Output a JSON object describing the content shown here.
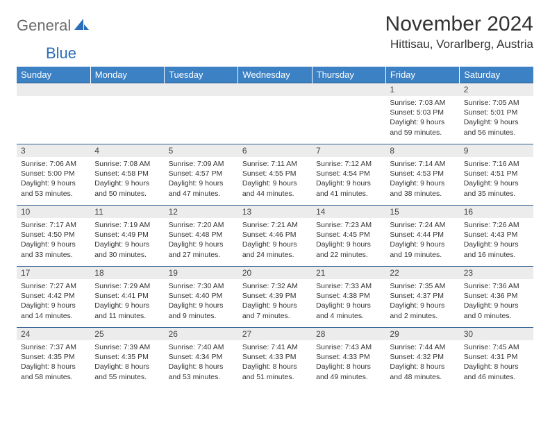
{
  "logo": {
    "general": "General",
    "blue": "Blue"
  },
  "header": {
    "month_title": "November 2024",
    "location": "Hittisau, Vorarlberg, Austria"
  },
  "colors": {
    "header_bg": "#3c81c4",
    "header_text": "#ffffff",
    "daynum_bg": "#ececec",
    "border": "#2c5a8c",
    "logo_gray": "#6b6b6b",
    "logo_blue": "#2a6db8"
  },
  "weekdays": [
    "Sunday",
    "Monday",
    "Tuesday",
    "Wednesday",
    "Thursday",
    "Friday",
    "Saturday"
  ],
  "weeks": [
    [
      null,
      null,
      null,
      null,
      null,
      {
        "d": "1",
        "sr": "7:03 AM",
        "ss": "5:03 PM",
        "dl": "9 hours and 59 minutes."
      },
      {
        "d": "2",
        "sr": "7:05 AM",
        "ss": "5:01 PM",
        "dl": "9 hours and 56 minutes."
      }
    ],
    [
      {
        "d": "3",
        "sr": "7:06 AM",
        "ss": "5:00 PM",
        "dl": "9 hours and 53 minutes."
      },
      {
        "d": "4",
        "sr": "7:08 AM",
        "ss": "4:58 PM",
        "dl": "9 hours and 50 minutes."
      },
      {
        "d": "5",
        "sr": "7:09 AM",
        "ss": "4:57 PM",
        "dl": "9 hours and 47 minutes."
      },
      {
        "d": "6",
        "sr": "7:11 AM",
        "ss": "4:55 PM",
        "dl": "9 hours and 44 minutes."
      },
      {
        "d": "7",
        "sr": "7:12 AM",
        "ss": "4:54 PM",
        "dl": "9 hours and 41 minutes."
      },
      {
        "d": "8",
        "sr": "7:14 AM",
        "ss": "4:53 PM",
        "dl": "9 hours and 38 minutes."
      },
      {
        "d": "9",
        "sr": "7:16 AM",
        "ss": "4:51 PM",
        "dl": "9 hours and 35 minutes."
      }
    ],
    [
      {
        "d": "10",
        "sr": "7:17 AM",
        "ss": "4:50 PM",
        "dl": "9 hours and 33 minutes."
      },
      {
        "d": "11",
        "sr": "7:19 AM",
        "ss": "4:49 PM",
        "dl": "9 hours and 30 minutes."
      },
      {
        "d": "12",
        "sr": "7:20 AM",
        "ss": "4:48 PM",
        "dl": "9 hours and 27 minutes."
      },
      {
        "d": "13",
        "sr": "7:21 AM",
        "ss": "4:46 PM",
        "dl": "9 hours and 24 minutes."
      },
      {
        "d": "14",
        "sr": "7:23 AM",
        "ss": "4:45 PM",
        "dl": "9 hours and 22 minutes."
      },
      {
        "d": "15",
        "sr": "7:24 AM",
        "ss": "4:44 PM",
        "dl": "9 hours and 19 minutes."
      },
      {
        "d": "16",
        "sr": "7:26 AM",
        "ss": "4:43 PM",
        "dl": "9 hours and 16 minutes."
      }
    ],
    [
      {
        "d": "17",
        "sr": "7:27 AM",
        "ss": "4:42 PM",
        "dl": "9 hours and 14 minutes."
      },
      {
        "d": "18",
        "sr": "7:29 AM",
        "ss": "4:41 PM",
        "dl": "9 hours and 11 minutes."
      },
      {
        "d": "19",
        "sr": "7:30 AM",
        "ss": "4:40 PM",
        "dl": "9 hours and 9 minutes."
      },
      {
        "d": "20",
        "sr": "7:32 AM",
        "ss": "4:39 PM",
        "dl": "9 hours and 7 minutes."
      },
      {
        "d": "21",
        "sr": "7:33 AM",
        "ss": "4:38 PM",
        "dl": "9 hours and 4 minutes."
      },
      {
        "d": "22",
        "sr": "7:35 AM",
        "ss": "4:37 PM",
        "dl": "9 hours and 2 minutes."
      },
      {
        "d": "23",
        "sr": "7:36 AM",
        "ss": "4:36 PM",
        "dl": "9 hours and 0 minutes."
      }
    ],
    [
      {
        "d": "24",
        "sr": "7:37 AM",
        "ss": "4:35 PM",
        "dl": "8 hours and 58 minutes."
      },
      {
        "d": "25",
        "sr": "7:39 AM",
        "ss": "4:35 PM",
        "dl": "8 hours and 55 minutes."
      },
      {
        "d": "26",
        "sr": "7:40 AM",
        "ss": "4:34 PM",
        "dl": "8 hours and 53 minutes."
      },
      {
        "d": "27",
        "sr": "7:41 AM",
        "ss": "4:33 PM",
        "dl": "8 hours and 51 minutes."
      },
      {
        "d": "28",
        "sr": "7:43 AM",
        "ss": "4:33 PM",
        "dl": "8 hours and 49 minutes."
      },
      {
        "d": "29",
        "sr": "7:44 AM",
        "ss": "4:32 PM",
        "dl": "8 hours and 48 minutes."
      },
      {
        "d": "30",
        "sr": "7:45 AM",
        "ss": "4:31 PM",
        "dl": "8 hours and 46 minutes."
      }
    ]
  ],
  "labels": {
    "sunrise": "Sunrise: ",
    "sunset": "Sunset: ",
    "daylight": "Daylight: "
  }
}
